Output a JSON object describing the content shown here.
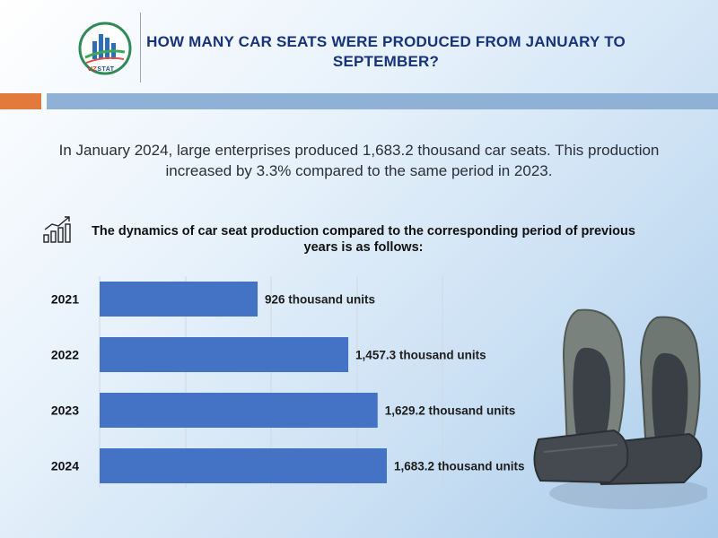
{
  "logo": {
    "brand_prefix": "UZ",
    "brand_suffix": "STAT"
  },
  "title": "HOW MANY CAR SEATS WERE PRODUCED FROM JANUARY TO SEPTEMBER?",
  "intro": "In January 2024, large enterprises produced 1,683.2 thousand car seats. This production increased by 3.3% compared to the same period in 2023.",
  "chart_heading": "The dynamics of car seat production compared to the corresponding period of previous years is as follows:",
  "colors": {
    "bar": "#4472c4",
    "title": "#17347a",
    "accent_orange": "#e27a3e",
    "accent_blue": "#8fb1d6"
  },
  "chart_data": {
    "type": "bar",
    "orientation": "horizontal",
    "categories": [
      "2021",
      "2022",
      "2023",
      "2024"
    ],
    "values": [
      926,
      1457.3,
      1629.2,
      1683.2
    ],
    "value_labels": [
      "926 thousand units",
      "1,457.3 thousand units",
      "1,629.2 thousand units",
      "1,683.2 thousand units"
    ],
    "unit": "thousand units",
    "xlim": [
      0,
      2000
    ],
    "grid": true
  }
}
